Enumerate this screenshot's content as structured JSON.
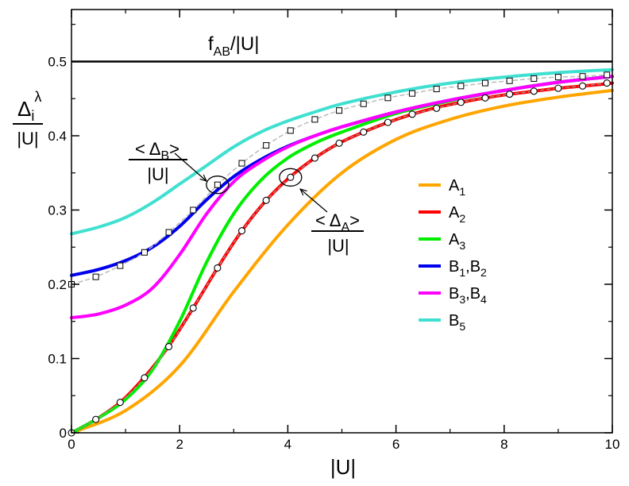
{
  "chart_data": {
    "type": "line",
    "xlabel": "|U|",
    "ylabel": {
      "num_base": "Δ",
      "num_sub": "i",
      "num_sup": "λ",
      "den": "|U|"
    },
    "xlim": [
      0,
      10
    ],
    "ylim": [
      0,
      0.57
    ],
    "x_ticks": [
      0,
      2,
      4,
      6,
      8,
      10
    ],
    "x_tick_labels": [
      "0",
      "2",
      "4",
      "6",
      "8",
      "10"
    ],
    "y_ticks": [
      0,
      0.1,
      0.2,
      0.3,
      0.4,
      0.5
    ],
    "y_tick_labels": [
      "0",
      "0.1",
      "0.2",
      "0.3",
      "0.4",
      "0.5"
    ],
    "grid": false,
    "legend_position": "right",
    "series": [
      {
        "id": "a1",
        "name": "A",
        "sub": "1",
        "color": "#ffa500",
        "x": [
          0,
          1,
          2,
          3,
          4,
          5,
          6,
          7,
          8,
          9,
          10
        ],
        "y": [
          0,
          0.03,
          0.09,
          0.19,
          0.28,
          0.35,
          0.395,
          0.422,
          0.44,
          0.452,
          0.461
        ]
      },
      {
        "id": "a2",
        "name": "A",
        "sub": "2",
        "color": "#ff0000",
        "x": [
          0,
          0.45,
          0.9,
          1.35,
          1.8,
          2.25,
          2.7,
          3.15,
          3.6,
          4.05,
          4.5,
          4.95,
          5.4,
          5.85,
          6.3,
          6.75,
          7.2,
          7.65,
          8.1,
          8.55,
          9.0,
          9.45,
          9.9,
          10
        ],
        "y": [
          0,
          0.018,
          0.041,
          0.075,
          0.117,
          0.168,
          0.222,
          0.272,
          0.313,
          0.345,
          0.37,
          0.39,
          0.405,
          0.418,
          0.429,
          0.438,
          0.445,
          0.451,
          0.456,
          0.46,
          0.464,
          0.467,
          0.47,
          0.471
        ]
      },
      {
        "id": "a3",
        "name": "A",
        "sub": "3",
        "color": "#00ee00",
        "x": [
          0,
          0.5,
          1,
          1.5,
          2,
          2.5,
          3,
          3.5,
          4,
          4.5,
          5,
          6,
          7,
          8,
          9,
          10
        ],
        "y": [
          0,
          0.02,
          0.045,
          0.085,
          0.15,
          0.23,
          0.295,
          0.34,
          0.37,
          0.39,
          0.405,
          0.43,
          0.447,
          0.461,
          0.472,
          0.48
        ]
      },
      {
        "id": "b12",
        "name": "B",
        "sub": "1",
        "name2": "B",
        "sub2": "2",
        "color": "#0000ee",
        "x": [
          0,
          0.5,
          1,
          1.5,
          2,
          2.5,
          3,
          3.5,
          4,
          4.5,
          5,
          6,
          7,
          8,
          9,
          10
        ],
        "y": [
          0.212,
          0.22,
          0.232,
          0.25,
          0.278,
          0.314,
          0.345,
          0.368,
          0.386,
          0.4,
          0.412,
          0.432,
          0.448,
          0.461,
          0.472,
          0.48
        ]
      },
      {
        "id": "b34",
        "name": "B",
        "sub": "3",
        "name2": "B",
        "sub2": "4",
        "color": "#ff00ff",
        "x": [
          0,
          0.5,
          1,
          1.5,
          2,
          2.5,
          3,
          3.5,
          4,
          4.5,
          5,
          6,
          7,
          8,
          9,
          10
        ],
        "y": [
          0.155,
          0.16,
          0.172,
          0.195,
          0.24,
          0.295,
          0.338,
          0.365,
          0.385,
          0.4,
          0.412,
          0.432,
          0.448,
          0.461,
          0.472,
          0.48
        ]
      },
      {
        "id": "b5",
        "name": "B",
        "sub": "5",
        "color": "#40e0d0",
        "x": [
          0,
          0.5,
          1,
          1.5,
          2,
          2.5,
          3,
          3.5,
          4,
          4.5,
          5,
          6,
          7,
          8,
          9,
          10
        ],
        "y": [
          0.268,
          0.277,
          0.29,
          0.31,
          0.335,
          0.36,
          0.385,
          0.405,
          0.42,
          0.432,
          0.443,
          0.459,
          0.471,
          0.479,
          0.485,
          0.489
        ]
      }
    ],
    "markers": {
      "squares": {
        "x": [
          0,
          0.45,
          0.9,
          1.35,
          1.8,
          2.25,
          2.7,
          3.15,
          3.6,
          4.05,
          4.5,
          4.95,
          5.4,
          5.85,
          6.3,
          6.75,
          7.2,
          7.65,
          8.1,
          8.55,
          9.0,
          9.45,
          9.9
        ],
        "y": [
          0.2,
          0.21,
          0.225,
          0.243,
          0.27,
          0.3,
          0.334,
          0.363,
          0.387,
          0.407,
          0.422,
          0.434,
          0.443,
          0.451,
          0.457,
          0.463,
          0.467,
          0.471,
          0.474,
          0.477,
          0.479,
          0.48,
          0.482
        ]
      },
      "circles": {
        "x": [
          0,
          0.45,
          0.9,
          1.35,
          1.8,
          2.25,
          2.7,
          3.15,
          3.6,
          4.05,
          4.5,
          4.95,
          5.4,
          5.85,
          6.3,
          6.75,
          7.2,
          7.65,
          8.1,
          8.55,
          9.0,
          9.45,
          9.9
        ],
        "y": [
          0,
          0.018,
          0.041,
          0.074,
          0.116,
          0.168,
          0.222,
          0.272,
          0.313,
          0.344,
          0.37,
          0.39,
          0.405,
          0.418,
          0.429,
          0.437,
          0.445,
          0.451,
          0.456,
          0.46,
          0.464,
          0.467,
          0.471
        ]
      }
    },
    "reference_line": {
      "y": 0.5,
      "label_base": "f",
      "label_sub": "AB",
      "label_rest": "/|U|",
      "color": "#000000"
    },
    "annotations": {
      "delta_b": {
        "open": "< Δ",
        "sub": "B",
        "close": ">",
        "den": "|U|",
        "target_x": 2.7,
        "target_y": 0.334
      },
      "delta_a": {
        "open": "< Δ",
        "sub": "A",
        "close": ">",
        "den": "|U|",
        "target_x": 4.05,
        "target_y": 0.344
      }
    }
  }
}
